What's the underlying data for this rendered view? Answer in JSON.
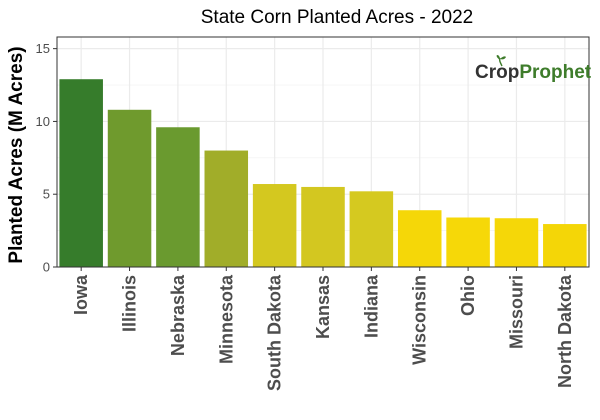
{
  "chart_data": {
    "type": "bar",
    "title": "State Corn Planted Acres - 2022",
    "xlabel": "",
    "ylabel": "Planted Acres (M Acres)",
    "ylim": [
      0,
      15.8
    ],
    "yticks": [
      0,
      5,
      10,
      15
    ],
    "grid": true,
    "categories": [
      "Iowa",
      "Illinois",
      "Nebraska",
      "Minnesota",
      "South Dakota",
      "Kansas",
      "Indiana",
      "Wisconsin",
      "Ohio",
      "Missouri",
      "North Dakota"
    ],
    "values": [
      12.9,
      10.8,
      9.6,
      8.0,
      5.7,
      5.5,
      5.2,
      3.9,
      3.4,
      3.35,
      2.95
    ],
    "colors": [
      "#367c2b",
      "#6f9a2d",
      "#6a9a2f",
      "#a1ad29",
      "#d4c81f",
      "#d3c720",
      "#d5c920",
      "#f5d708",
      "#f6d808",
      "#f5d708",
      "#f4d607"
    ]
  },
  "logo": {
    "part1": "Crop",
    "part2": "Prophet",
    "color1": "#333333",
    "color2": "#3e7c2b"
  }
}
